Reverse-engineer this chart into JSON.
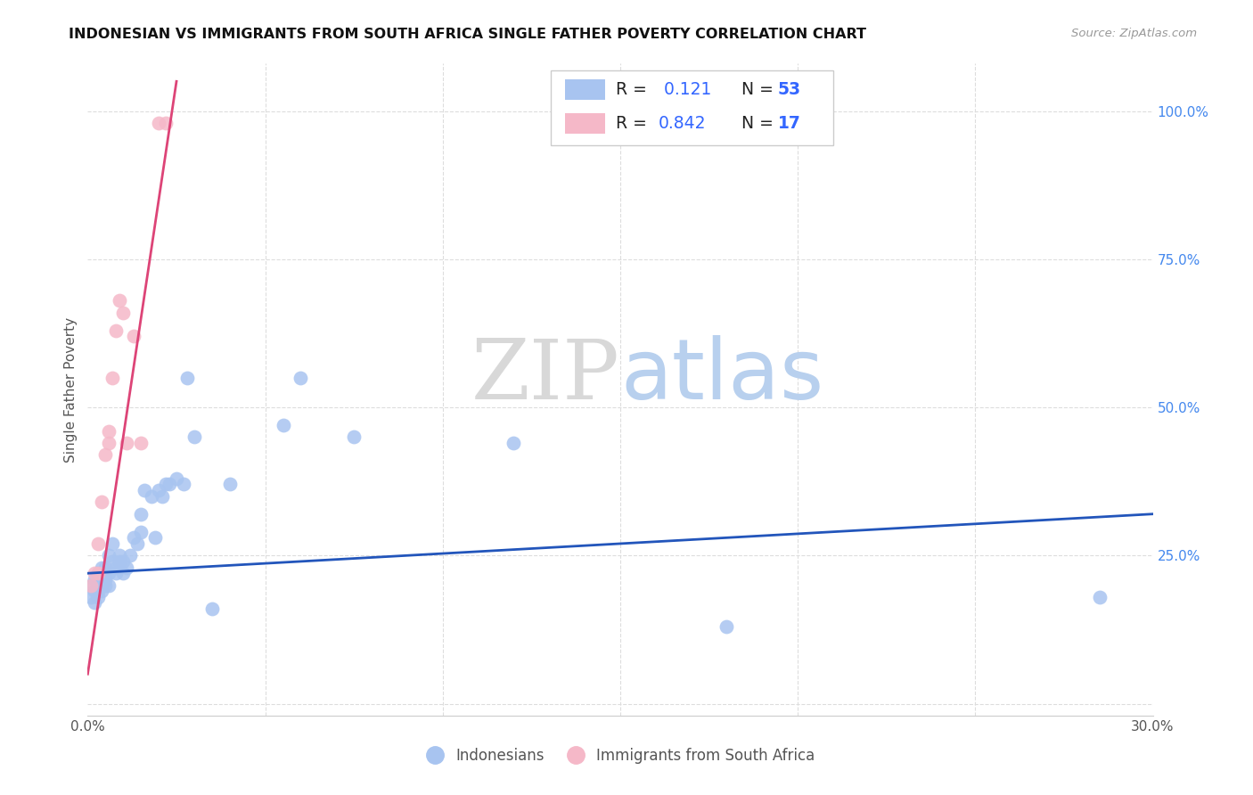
{
  "title": "INDONESIAN VS IMMIGRANTS FROM SOUTH AFRICA SINGLE FATHER POVERTY CORRELATION CHART",
  "source": "Source: ZipAtlas.com",
  "ylabel": "Single Father Poverty",
  "xlim": [
    0.0,
    0.3
  ],
  "ylim": [
    -0.02,
    1.08
  ],
  "blue_color": "#a8c4f0",
  "pink_color": "#f5b8c8",
  "trendline_blue": "#2255bb",
  "trendline_pink": "#dd4477",
  "watermark_zip": "ZIP",
  "watermark_atlas": "atlas",
  "r1": "0.121",
  "n1": "53",
  "r2": "0.842",
  "n2": "17",
  "indo_x": [
    0.001,
    0.001,
    0.002,
    0.002,
    0.002,
    0.003,
    0.003,
    0.003,
    0.003,
    0.004,
    0.004,
    0.004,
    0.004,
    0.005,
    0.005,
    0.005,
    0.005,
    0.006,
    0.006,
    0.006,
    0.007,
    0.007,
    0.008,
    0.008,
    0.009,
    0.009,
    0.01,
    0.01,
    0.011,
    0.012,
    0.013,
    0.014,
    0.015,
    0.015,
    0.016,
    0.018,
    0.019,
    0.02,
    0.021,
    0.022,
    0.023,
    0.025,
    0.027,
    0.028,
    0.03,
    0.035,
    0.04,
    0.055,
    0.06,
    0.075,
    0.12,
    0.18,
    0.285
  ],
  "indo_y": [
    0.2,
    0.18,
    0.21,
    0.19,
    0.17,
    0.2,
    0.19,
    0.22,
    0.18,
    0.21,
    0.2,
    0.23,
    0.19,
    0.22,
    0.21,
    0.2,
    0.23,
    0.22,
    0.2,
    0.25,
    0.27,
    0.24,
    0.23,
    0.22,
    0.25,
    0.24,
    0.22,
    0.24,
    0.23,
    0.25,
    0.28,
    0.27,
    0.32,
    0.29,
    0.36,
    0.35,
    0.28,
    0.36,
    0.35,
    0.37,
    0.37,
    0.38,
    0.37,
    0.55,
    0.45,
    0.16,
    0.37,
    0.47,
    0.55,
    0.45,
    0.44,
    0.13,
    0.18
  ],
  "sa_x": [
    0.001,
    0.002,
    0.003,
    0.003,
    0.004,
    0.005,
    0.006,
    0.006,
    0.007,
    0.008,
    0.009,
    0.01,
    0.011,
    0.013,
    0.015,
    0.02,
    0.022
  ],
  "sa_y": [
    0.2,
    0.22,
    0.22,
    0.27,
    0.34,
    0.42,
    0.44,
    0.46,
    0.55,
    0.63,
    0.68,
    0.66,
    0.44,
    0.62,
    0.44,
    0.98,
    0.98
  ],
  "trendline_blue_x0": 0.0,
  "trendline_blue_y0": 0.22,
  "trendline_blue_x1": 0.3,
  "trendline_blue_y1": 0.32,
  "trendline_pink_x0": 0.0,
  "trendline_pink_y0": 0.05,
  "trendline_pink_x1": 0.025,
  "trendline_pink_y1": 1.05
}
